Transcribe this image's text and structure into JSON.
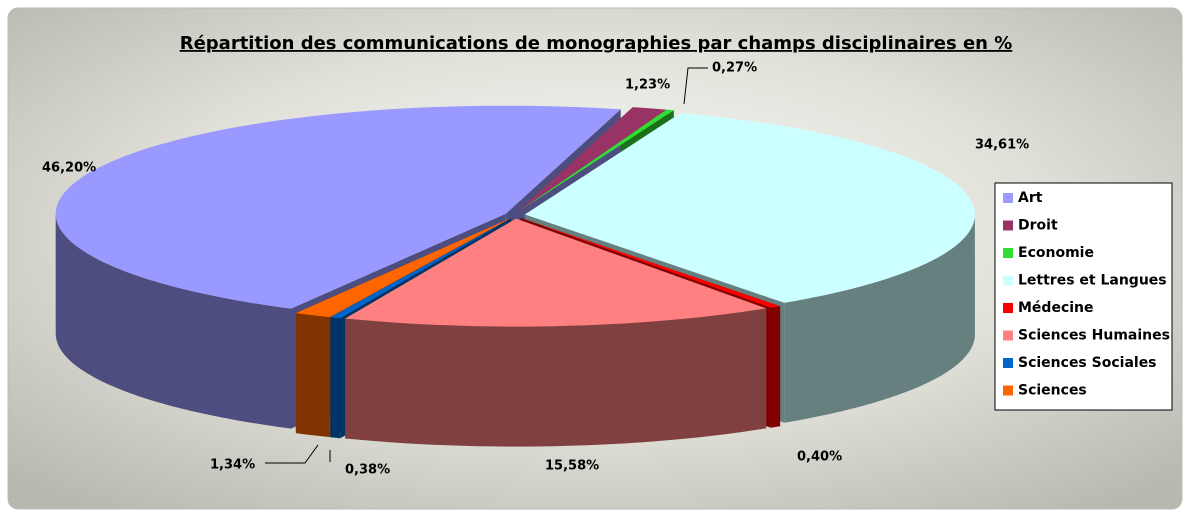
{
  "chart_data": {
    "type": "pie3d",
    "title": "Répartition des communications de monographies par champs disciplinaires en %",
    "categories": [
      "Art",
      "Droit",
      "Economie",
      "Lettres et Langues",
      "Médecine",
      "Sciences Humaines",
      "Sciences Sociales",
      "Sciences"
    ],
    "values": [
      46.2,
      1.23,
      0.27,
      34.61,
      0.4,
      15.58,
      0.38,
      1.34
    ],
    "value_labels": [
      "46,20%",
      "1,23%",
      "0,27%",
      "34,61%",
      "0,40%",
      "15,58%",
      "0,38%",
      "1,34%"
    ],
    "colors": [
      "#9999ff",
      "#993366",
      "#33dd33",
      "#ccffff",
      "#ff0000",
      "#ff8080",
      "#0066cc",
      "#ff6600"
    ],
    "legend": "right"
  }
}
